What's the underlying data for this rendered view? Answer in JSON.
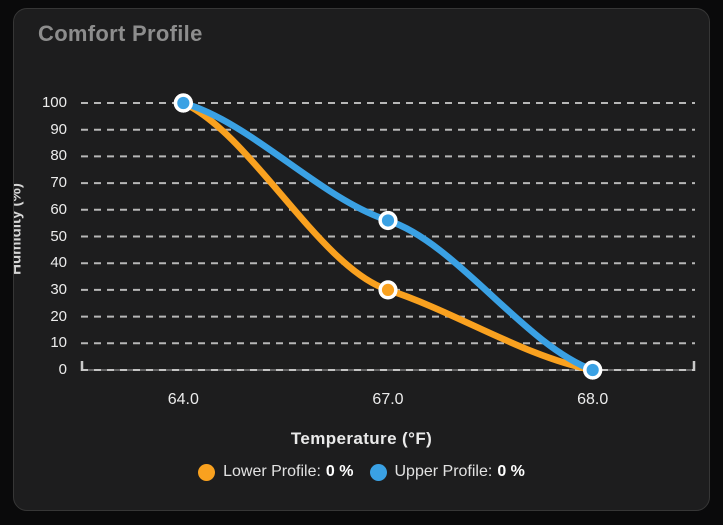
{
  "card": {
    "title": "Comfort Profile"
  },
  "chart_data": {
    "type": "line",
    "title": "Comfort Profile",
    "xlabel": "Temperature (°F)",
    "ylabel": "Humidity (%)",
    "categories": [
      "64.0",
      "67.0",
      "68.0"
    ],
    "x_values": [
      64.0,
      67.0,
      68.0
    ],
    "series": [
      {
        "name": "Lower Profile",
        "values": [
          100,
          30,
          0
        ],
        "color": "#f9a11f"
      },
      {
        "name": "Upper Profile",
        "values": [
          100,
          56,
          0
        ],
        "color": "#3aa1e4"
      }
    ],
    "ylim": [
      0,
      100
    ],
    "yticks": [
      0,
      10,
      20,
      30,
      40,
      50,
      60,
      70,
      80,
      90,
      100
    ],
    "grid": "horizontal-dashed",
    "legend_position": "bottom",
    "line_style": "smooth-monotone",
    "point_markers": true
  },
  "legend": {
    "items": [
      {
        "label": "Lower Profile:",
        "value": "0 %",
        "color": "#f9a11f"
      },
      {
        "label": "Upper Profile:",
        "value": "0 %",
        "color": "#3aa1e4"
      }
    ]
  }
}
